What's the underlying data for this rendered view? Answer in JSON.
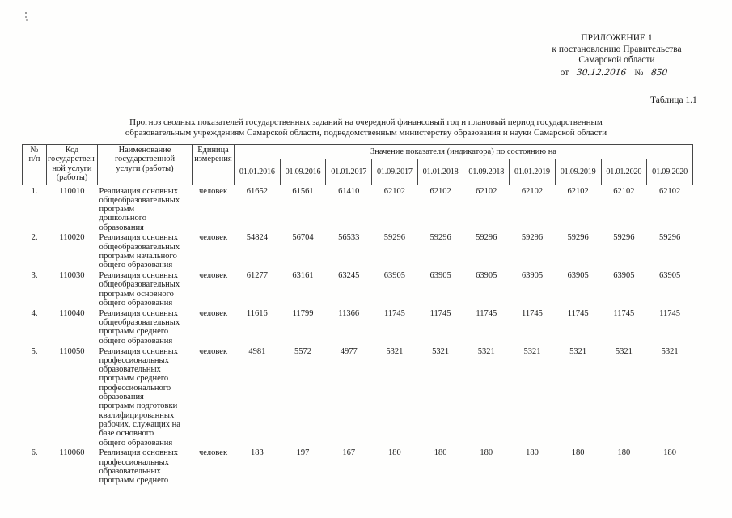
{
  "document": {
    "appendix": {
      "line1": "ПРИЛОЖЕНИЕ 1",
      "line2": "к постановлению Правительства",
      "line3": "Самарской области",
      "date_prefix": "от",
      "date_value": "30.12.2016",
      "number_sign": "№",
      "number_value": "850"
    },
    "table_label": "Таблица 1.1",
    "title_line1": "Прогноз сводных показателей государственных заданий на очередной финансовый год и плановый период государственным",
    "title_line2": "образовательным учреждениям Самарской области, подведомственным министерству образования и науки Самарской области"
  },
  "table": {
    "headers": {
      "num": "№\nп/п",
      "code": "Код\nгосударствен-\nной услуги\n(работы)",
      "name": "Наименование\nгосударственной\nуслуги (работы)",
      "unit": "Единица\nизмерения",
      "values_group": "Значение показателя (индикатора) по состоянию на"
    },
    "dates": [
      "01.01.2016",
      "01.09.2016",
      "01.01.2017",
      "01.09.2017",
      "01.01.2018",
      "01.09.2018",
      "01.01.2019",
      "01.09.2019",
      "01.01.2020",
      "01.09.2020"
    ],
    "rows": [
      {
        "num": "1.",
        "code": "110010",
        "name": "Реализация основных\nобщеобразовательных\nпрограмм\nдошкольного\nобразования",
        "unit": "человек",
        "values": [
          "61652",
          "61561",
          "61410",
          "62102",
          "62102",
          "62102",
          "62102",
          "62102",
          "62102",
          "62102"
        ]
      },
      {
        "num": "2.",
        "code": "110020",
        "name": "Реализация основных\nобщеобразовательных\nпрограмм начального\nобщего образования",
        "unit": "человек",
        "values": [
          "54824",
          "56704",
          "56533",
          "59296",
          "59296",
          "59296",
          "59296",
          "59296",
          "59296",
          "59296"
        ]
      },
      {
        "num": "3.",
        "code": "110030",
        "name": "Реализация основных\nобщеобразовательных\nпрограмм основного\nобщего образования",
        "unit": "человек",
        "values": [
          "61277",
          "63161",
          "63245",
          "63905",
          "63905",
          "63905",
          "63905",
          "63905",
          "63905",
          "63905"
        ]
      },
      {
        "num": "4.",
        "code": "110040",
        "name": "Реализация основных\nобщеобразовательных\nпрограмм среднего\nобщего образования",
        "unit": "человек",
        "values": [
          "11616",
          "11799",
          "11366",
          "11745",
          "11745",
          "11745",
          "11745",
          "11745",
          "11745",
          "11745"
        ]
      },
      {
        "num": "5.",
        "code": "110050",
        "name": "Реализация основных\nпрофессиональных\nобразовательных\nпрограмм среднего\nпрофессионального\nобразования –\nпрограмм подготовки\nквалифицированных\nрабочих, служащих на\nбазе основного\nобщего образования",
        "unit": "человек",
        "values": [
          "4981",
          "5572",
          "4977",
          "5321",
          "5321",
          "5321",
          "5321",
          "5321",
          "5321",
          "5321"
        ]
      },
      {
        "num": "6.",
        "code": "110060",
        "name": "Реализация основных\nпрофессиональных\nобразовательных\nпрограмм среднего",
        "unit": "человек",
        "values": [
          "183",
          "197",
          "167",
          "180",
          "180",
          "180",
          "180",
          "180",
          "180",
          "180"
        ]
      }
    ]
  }
}
